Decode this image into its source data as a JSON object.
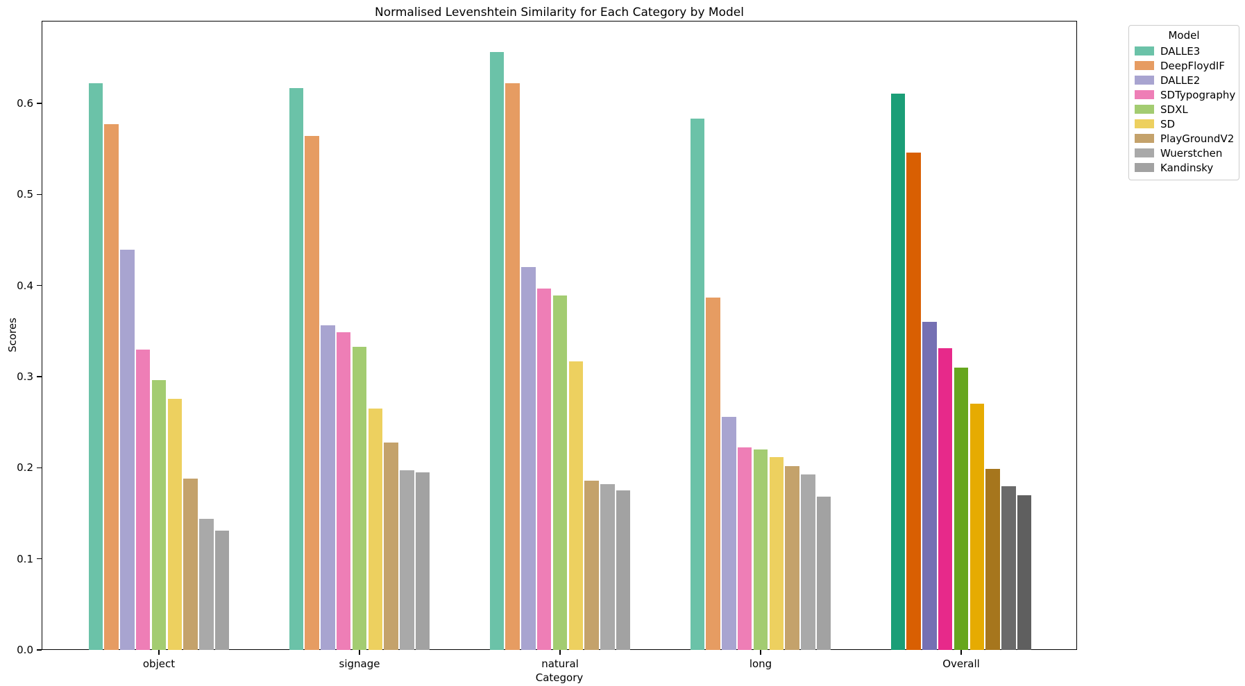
{
  "chart_data": {
    "type": "bar",
    "title": "Normalised Levenshtein Similarity for Each Category by Model",
    "xlabel": "Category",
    "ylabel": "Scores",
    "categories": [
      "object",
      "signage",
      "natural",
      "long",
      "Overall"
    ],
    "emphasized_category": "Overall",
    "series": [
      {
        "name": "DALLE3",
        "color": "#6bc2a8",
        "overall_color": "#1b9e77",
        "values": [
          0.622,
          0.617,
          0.656,
          0.583,
          0.611
        ]
      },
      {
        "name": "DeepFloydIF",
        "color": "#e69c62",
        "overall_color": "#d95f02",
        "values": [
          0.577,
          0.564,
          0.622,
          0.387,
          0.546
        ]
      },
      {
        "name": "DALLE2",
        "color": "#a8a4d0",
        "overall_color": "#7570b3",
        "values": [
          0.439,
          0.356,
          0.42,
          0.256,
          0.36
        ]
      },
      {
        "name": "SDTypography",
        "color": "#ee7eb6",
        "overall_color": "#e7298a",
        "values": [
          0.33,
          0.349,
          0.397,
          0.222,
          0.331
        ]
      },
      {
        "name": "SDXL",
        "color": "#a3cc71",
        "overall_color": "#66a61e",
        "values": [
          0.296,
          0.333,
          0.389,
          0.22,
          0.31
        ]
      },
      {
        "name": "SD",
        "color": "#edd05f",
        "overall_color": "#e6ab02",
        "values": [
          0.276,
          0.265,
          0.317,
          0.212,
          0.27
        ]
      },
      {
        "name": "PlayGroundV2",
        "color": "#c4a26b",
        "overall_color": "#a6761d",
        "values": [
          0.188,
          0.228,
          0.186,
          0.202,
          0.199
        ]
      },
      {
        "name": "Wuerstchen",
        "color": "#a9a9a9",
        "overall_color": "#6a6a6a",
        "values": [
          0.144,
          0.197,
          0.182,
          0.193,
          0.18
        ]
      },
      {
        "name": "Kandinsky",
        "color": "#a2a2a2",
        "overall_color": "#5f5f5f",
        "values": [
          0.131,
          0.195,
          0.175,
          0.168,
          0.17
        ]
      }
    ],
    "yticks": [
      0.0,
      0.1,
      0.2,
      0.3,
      0.4,
      0.5,
      0.6
    ],
    "ytick_labels": [
      "0.0",
      "0.1",
      "0.2",
      "0.3",
      "0.4",
      "0.5",
      "0.6"
    ],
    "ylim": [
      0,
      0.6906
    ],
    "grid": false,
    "legend": {
      "title": "Model",
      "position": "outside-upper-right"
    }
  }
}
